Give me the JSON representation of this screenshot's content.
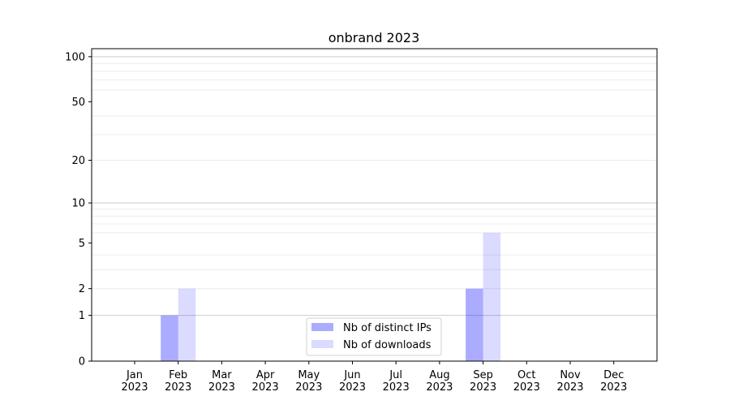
{
  "chart_data": {
    "type": "bar",
    "title": "onbrand 2023",
    "xlabel": "",
    "ylabel": "",
    "yscale": "log(1+y)",
    "ylim": [
      0,
      113
    ],
    "yticks": [
      0,
      1,
      2,
      5,
      10,
      20,
      50,
      100
    ],
    "grid": true,
    "legend_position": "lower-center",
    "categories": [
      "Jan\n2023",
      "Feb\n2023",
      "Mar\n2023",
      "Apr\n2023",
      "May\n2023",
      "Jun\n2023",
      "Jul\n2023",
      "Aug\n2023",
      "Sep\n2023",
      "Oct\n2023",
      "Nov\n2023",
      "Dec\n2023"
    ],
    "series": [
      {
        "name": "Nb of distinct IPs",
        "color": "#0000ff",
        "alpha": 0.33,
        "values": [
          0,
          1,
          0,
          0,
          0,
          0,
          0,
          0,
          2,
          0,
          0,
          0
        ]
      },
      {
        "name": "Nb of downloads",
        "color": "#0000ff",
        "alpha": 0.14,
        "values": [
          0,
          2,
          0,
          0,
          0,
          0,
          0,
          0,
          6,
          0,
          0,
          0
        ]
      }
    ]
  }
}
